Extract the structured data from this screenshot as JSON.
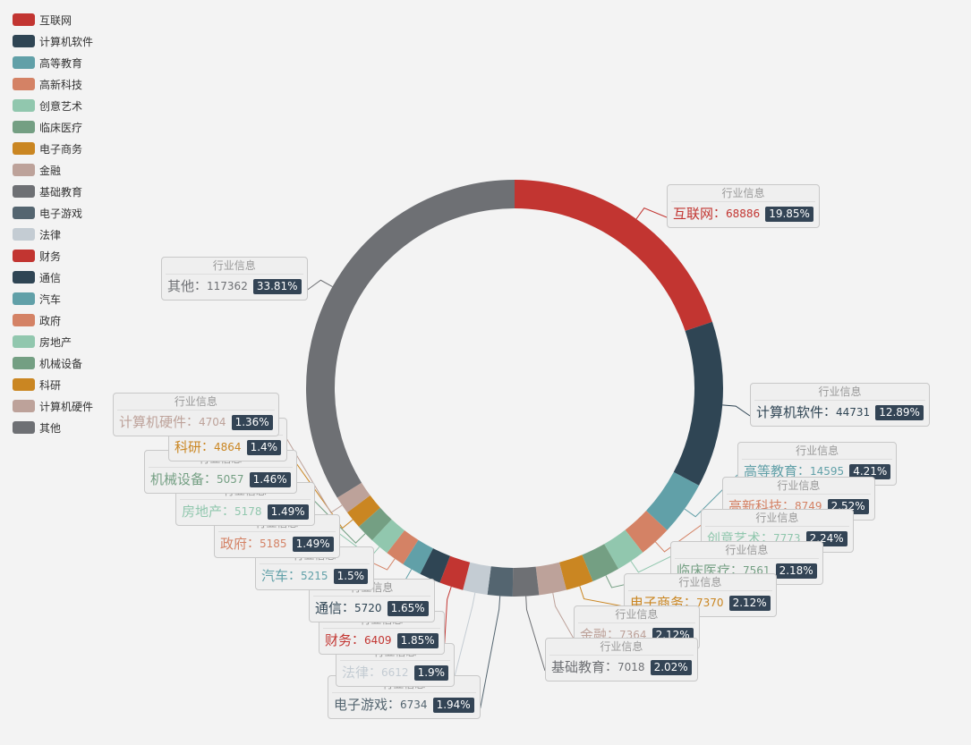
{
  "chart_data": {
    "type": "pie",
    "label_header": "行业信息",
    "label_separator": "：",
    "categories": [
      "互联网",
      "计算机软件",
      "高等教育",
      "高新科技",
      "创意艺术",
      "临床医疗",
      "电子商务",
      "金融",
      "基础教育",
      "电子游戏",
      "法律",
      "财务",
      "通信",
      "汽车",
      "政府",
      "房地产",
      "机械设备",
      "科研",
      "计算机硬件",
      "其他"
    ],
    "values": [
      68886,
      44731,
      14595,
      8749,
      7773,
      7561,
      7370,
      7364,
      7018,
      6734,
      6612,
      6409,
      5720,
      5215,
      5185,
      5178,
      5057,
      4864,
      4704,
      117362
    ],
    "percent_labels": [
      "19.85%",
      "12.89%",
      "4.21%",
      "2.52%",
      "2.24%",
      "2.18%",
      "2.12%",
      "2.12%",
      "2.02%",
      "1.94%",
      "1.9%",
      "1.85%",
      "1.65%",
      "1.5%",
      "1.49%",
      "1.49%",
      "1.46%",
      "1.4%",
      "1.36%",
      "33.81%"
    ],
    "colors": [
      "#c23531",
      "#2f4554",
      "#61a0a8",
      "#d48265",
      "#91c7ae",
      "#749f83",
      "#ca8622",
      "#bda29a",
      "#6e7074",
      "#546570",
      "#c4ccd3",
      "#c23531",
      "#2f4554",
      "#61a0a8",
      "#d48265",
      "#91c7ae",
      "#749f83",
      "#ca8622",
      "#bda29a",
      "#6e7074"
    ]
  }
}
